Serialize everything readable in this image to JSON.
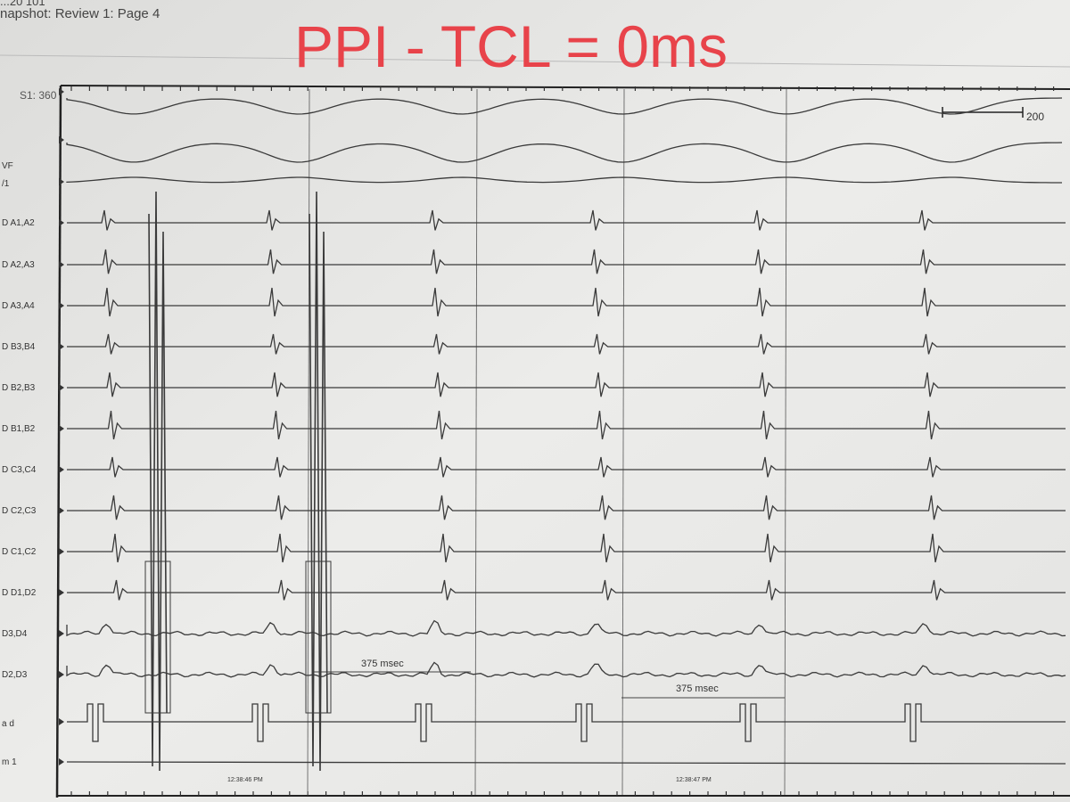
{
  "header": {
    "top_fragment": "...20 101",
    "snapshot_title": "napshot: Review 1: Page 4"
  },
  "overlay_title": "PPI - TCL = 0ms",
  "recording": {
    "corner_label": "S1: 360",
    "channel_labels": [
      "VF",
      "/1",
      "D A1,A2",
      "D A2,A3",
      "D A3,A4",
      "D B3,B4",
      "D B2,B3",
      "D B1,B2",
      "D C3,C4",
      "D C2,C3",
      "D C1,C2",
      "D D1,D2",
      "D3,D4",
      "D2,D3",
      "a d",
      "m 1"
    ],
    "scale_bar_label": "200",
    "measurements": [
      "375 msec",
      "375 msec"
    ],
    "timestamps": [
      "12:38:46 PM",
      "12:38:47 PM"
    ]
  },
  "colors": {
    "overlay_text": "#e8434a",
    "trace": "#3a3a3a",
    "paper": "#e9e9e7"
  }
}
